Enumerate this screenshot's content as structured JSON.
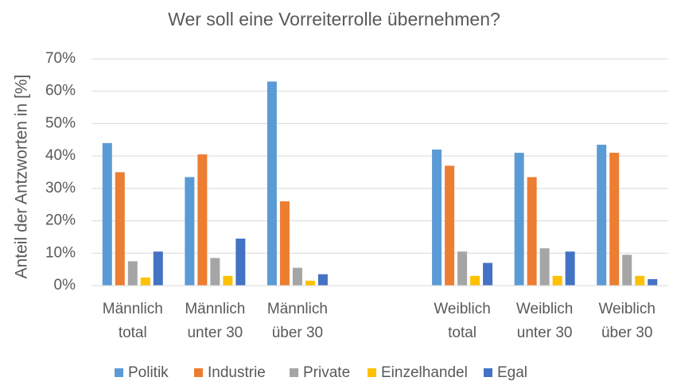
{
  "chart_data": {
    "type": "bar",
    "title": "Wer soll eine Vorreiterrolle übernehmen?",
    "y_label": "Anteil der Antzworten in [%]",
    "categories": [
      "Männlich\ntotal",
      "Männlich\nunter 30",
      "Männlich\nüber 30",
      null,
      "Weiblich\ntotal",
      "Weiblich\nunter 30",
      "Weiblich\nüber 30"
    ],
    "series": [
      {
        "name": "Politik",
        "color": "#5b9bd5",
        "values": [
          44,
          33.5,
          63,
          null,
          42,
          41,
          43.5
        ]
      },
      {
        "name": "Industrie",
        "color": "#ed7d31",
        "values": [
          35,
          40.5,
          26,
          null,
          37,
          33.5,
          41
        ]
      },
      {
        "name": "Private",
        "color": "#a5a5a5",
        "values": [
          7.5,
          8.5,
          5.5,
          null,
          10.5,
          11.5,
          9.5
        ]
      },
      {
        "name": "Einzelhandel",
        "color": "#ffc000",
        "values": [
          2.5,
          3,
          1.5,
          null,
          3,
          3,
          3
        ]
      },
      {
        "name": "Egal",
        "color": "#4472c4",
        "values": [
          10.5,
          14.5,
          3.5,
          null,
          7,
          10.5,
          2
        ]
      }
    ],
    "ylim": [
      0,
      70
    ],
    "yticks": [
      {
        "value": 0,
        "label": "0%"
      },
      {
        "value": 10,
        "label": "10%"
      },
      {
        "value": 20,
        "label": "20%"
      },
      {
        "value": 30,
        "label": "30%"
      },
      {
        "value": 40,
        "label": "40%"
      },
      {
        "value": 50,
        "label": "50%"
      },
      {
        "value": 60,
        "label": "60%"
      },
      {
        "value": 70,
        "label": "70%"
      }
    ],
    "grid": true,
    "legend": "bottom"
  }
}
